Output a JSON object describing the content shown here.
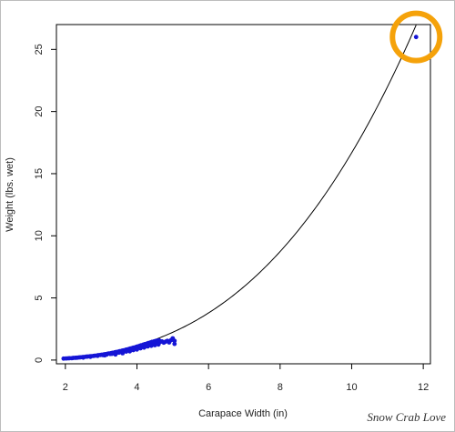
{
  "chart_data": {
    "type": "scatter",
    "title": "",
    "xlabel": "Carapace Width (in)",
    "ylabel": "Weight (lbs. wet)",
    "xlim": [
      1.75,
      12.2
    ],
    "ylim": [
      -0.3,
      27.0
    ],
    "xticks": [
      "2",
      "4",
      "6",
      "8",
      "10",
      "12"
    ],
    "yticks": [
      "0",
      "5",
      "10",
      "15",
      "20",
      "25"
    ],
    "grid": false,
    "point_color": "#1515d6",
    "curve_color": "#000000",
    "highlight_color": "#f5a20a",
    "highlight_point": {
      "x": 11.8,
      "y": 26.0
    },
    "fit_curve": {
      "a": 0.021,
      "b": 2.9
    },
    "points": [
      [
        1.95,
        0.12
      ],
      [
        2.02,
        0.13
      ],
      [
        2.08,
        0.14
      ],
      [
        2.12,
        0.15
      ],
      [
        2.18,
        0.15
      ],
      [
        2.22,
        0.17
      ],
      [
        2.28,
        0.18
      ],
      [
        2.33,
        0.19
      ],
      [
        2.38,
        0.21
      ],
      [
        2.42,
        0.22
      ],
      [
        2.48,
        0.24
      ],
      [
        2.52,
        0.25
      ],
      [
        2.58,
        0.27
      ],
      [
        2.62,
        0.28
      ],
      [
        2.68,
        0.3
      ],
      [
        2.72,
        0.31
      ],
      [
        2.78,
        0.33
      ],
      [
        2.82,
        0.35
      ],
      [
        2.88,
        0.37
      ],
      [
        2.92,
        0.39
      ],
      [
        2.98,
        0.41
      ],
      [
        3.02,
        0.43
      ],
      [
        3.05,
        0.4
      ],
      [
        3.08,
        0.46
      ],
      [
        3.12,
        0.48
      ],
      [
        3.15,
        0.44
      ],
      [
        3.18,
        0.51
      ],
      [
        3.22,
        0.53
      ],
      [
        3.25,
        0.49
      ],
      [
        3.28,
        0.56
      ],
      [
        3.32,
        0.59
      ],
      [
        3.35,
        0.55
      ],
      [
        3.38,
        0.62
      ],
      [
        3.42,
        0.65
      ],
      [
        3.45,
        0.6
      ],
      [
        3.48,
        0.68
      ],
      [
        3.52,
        0.71
      ],
      [
        3.55,
        0.66
      ],
      [
        3.58,
        0.75
      ],
      [
        3.62,
        0.78
      ],
      [
        3.65,
        0.72
      ],
      [
        3.68,
        0.82
      ],
      [
        3.72,
        0.85
      ],
      [
        3.75,
        0.79
      ],
      [
        3.78,
        0.9
      ],
      [
        3.82,
        0.93
      ],
      [
        3.85,
        0.86
      ],
      [
        3.88,
        0.98
      ],
      [
        3.92,
        1.01
      ],
      [
        3.95,
        0.94
      ],
      [
        3.98,
        1.06
      ],
      [
        4.02,
        1.1
      ],
      [
        4.05,
        1.02
      ],
      [
        4.08,
        1.15
      ],
      [
        4.12,
        1.19
      ],
      [
        4.15,
        1.08
      ],
      [
        4.18,
        1.24
      ],
      [
        4.22,
        1.28
      ],
      [
        4.25,
        1.15
      ],
      [
        4.28,
        1.33
      ],
      [
        4.32,
        1.37
      ],
      [
        4.35,
        1.22
      ],
      [
        4.38,
        1.42
      ],
      [
        4.42,
        1.46
      ],
      [
        4.45,
        1.3
      ],
      [
        4.48,
        1.5
      ],
      [
        4.52,
        1.54
      ],
      [
        4.55,
        1.38
      ],
      [
        4.58,
        1.56
      ],
      [
        4.62,
        1.58
      ],
      [
        4.65,
        1.45
      ],
      [
        4.7,
        1.5
      ],
      [
        4.75,
        1.4
      ],
      [
        4.8,
        1.48
      ],
      [
        4.85,
        1.55
      ],
      [
        4.9,
        1.42
      ],
      [
        4.95,
        1.6
      ],
      [
        5.0,
        1.75
      ],
      [
        5.05,
        1.3
      ],
      [
        5.05,
        1.55
      ],
      [
        3.4,
        0.45
      ],
      [
        3.6,
        0.55
      ],
      [
        3.8,
        0.7
      ],
      [
        4.0,
        0.85
      ],
      [
        4.2,
        1.0
      ],
      [
        4.4,
        1.15
      ],
      [
        4.6,
        1.25
      ],
      [
        2.5,
        0.2
      ],
      [
        2.7,
        0.26
      ],
      [
        2.9,
        0.34
      ],
      [
        3.1,
        0.38
      ],
      [
        3.3,
        0.5
      ],
      [
        3.5,
        0.6
      ],
      [
        3.7,
        0.68
      ],
      [
        3.9,
        0.8
      ],
      [
        4.1,
        0.95
      ],
      [
        4.3,
        1.1
      ],
      [
        4.5,
        1.2
      ],
      [
        11.8,
        26.0
      ]
    ]
  },
  "watermark": "Snow Crab Love"
}
